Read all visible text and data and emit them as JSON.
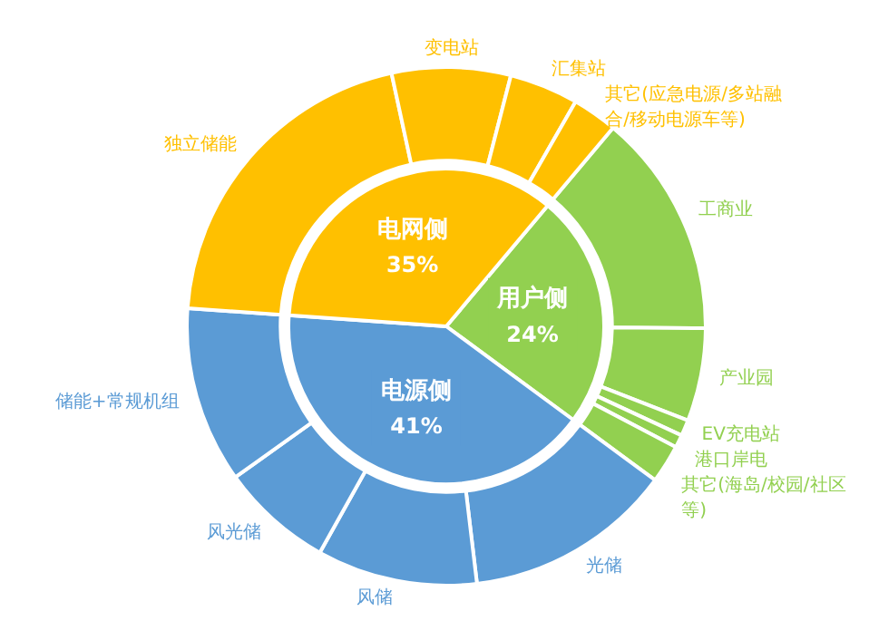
{
  "chart_data": [
    {
      "type": "pie",
      "categories": [
        "用户侧",
        "电源侧",
        "电网侧"
      ],
      "values": [
        24,
        41,
        35
      ],
      "colors": [
        "#92d050",
        "#5b9bd5",
        "#ffc000"
      ],
      "value_labels": [
        "24%",
        "41%",
        "35%"
      ],
      "legend": false
    },
    {
      "type": "donut",
      "categories": [
        "工商业",
        "产业园",
        "EV充电站",
        "港口岸电",
        "其它(海岛/校园/社区等)",
        "光储",
        "风储",
        "风光储",
        "储能+常规机组",
        "独立储能",
        "变电站",
        "汇集站",
        "其它(应急电源/多站融合/移动电源车等)"
      ],
      "values": [
        14.0,
        5.8,
        1.0,
        0.8,
        2.4,
        13.0,
        10.0,
        7.0,
        11.0,
        20.5,
        7.4,
        4.3,
        2.8
      ],
      "colors": [
        "#92d050",
        "#92d050",
        "#92d050",
        "#92d050",
        "#92d050",
        "#5b9bd5",
        "#5b9bd5",
        "#5b9bd5",
        "#5b9bd5",
        "#ffc000",
        "#ffc000",
        "#ffc000",
        "#ffc000"
      ],
      "legend": false
    }
  ]
}
